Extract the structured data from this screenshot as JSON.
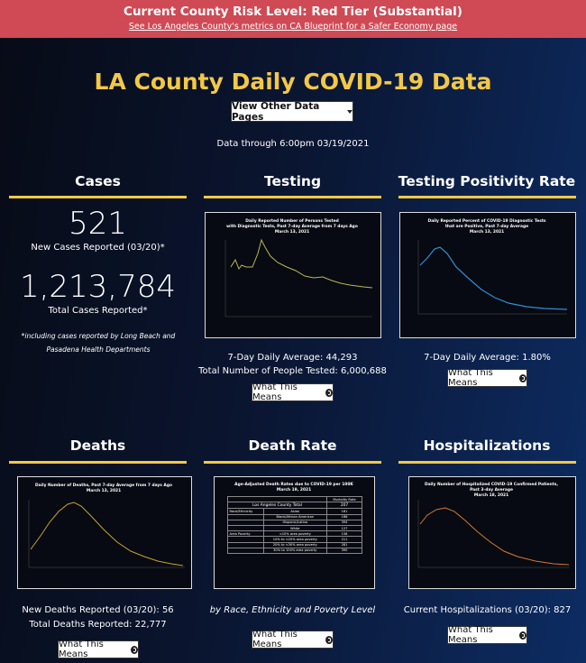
{
  "banner": {
    "title": "Current County Risk Level: Red Tier (Substantial)",
    "link": "See Los Angeles County's metrics on CA Blueprint for a Safer Economy page"
  },
  "header": {
    "title": "LA County Daily COVID-19 Data",
    "button": "View Other Data Pages",
    "data_through": "Data through 6:00pm 03/19/2021"
  },
  "cases": {
    "heading": "Cases",
    "new_value": "521",
    "new_label": "New Cases Reported (03/20)*",
    "total_value": "1,213,784",
    "total_label": "Total Cases Reported*",
    "note": "*including cases reported by Long Beach and Pasadena Health Departments"
  },
  "testing": {
    "heading": "Testing",
    "chart_title": [
      "Daily Reported Number of Persons Tested",
      "with Diagnostic Tests, Past 7-day Average from 7 days Ago",
      "March 13, 2021"
    ],
    "lines": [
      "7-Day Daily Average: 44,293",
      "Total Number of People Tested: 6,000,688"
    ],
    "button": "What This Means"
  },
  "positivity": {
    "heading": "Testing Positivity Rate",
    "chart_title": [
      "Daily Reported Percent of COVID-19 Diagnostic Tests",
      "that are Positive, Past 7-day Average",
      "March 13, 2021"
    ],
    "lines": [
      "7-Day Daily Average: 1.80%"
    ],
    "button": "What This Means"
  },
  "deaths": {
    "heading": "Deaths",
    "chart_title": [
      "Daily Number of Deaths, Past 7-day Average from 7 days Ago",
      "March 13, 2021"
    ],
    "lines": [
      "New Deaths Reported (03/20): 56",
      "Total Deaths Reported: 22,777"
    ],
    "button": "What This Means"
  },
  "death_rate": {
    "heading": "Death Rate",
    "chart_title": [
      "Age-Adjusted Death Rates due to COVID-19 per 100K",
      "March 19, 2021"
    ],
    "table": {
      "column": "Mortality Rate",
      "total_label": "Los Angeles County Total",
      "total_value": "207",
      "rows": [
        [
          "Race/Ethnicity",
          "Asian",
          "161"
        ],
        [
          "",
          "Black/African American",
          "186"
        ],
        [
          "",
          "Hispanic/Latino",
          "394"
        ],
        [
          "",
          "White",
          "127"
        ],
        [
          "Area Poverty",
          "<10% area poverty",
          "158"
        ],
        [
          "",
          "10% to <20% area poverty",
          "211"
        ],
        [
          "",
          "20% to <30% area poverty",
          "281"
        ],
        [
          "",
          "30% to 100% area poverty",
          "390"
        ]
      ]
    },
    "caption": "by Race, Ethnicity and Poverty Level",
    "button": "What This Means"
  },
  "hospitalizations": {
    "heading": "Hospitalizations",
    "chart_title": [
      "Daily Number of Hospitalized COVID-19 Confirmed Patients,",
      "Past 3-day Average",
      "March 18, 2021"
    ],
    "lines": [
      "Current Hospitalizations (03/20): 827"
    ],
    "button": "What This Means"
  }
}
